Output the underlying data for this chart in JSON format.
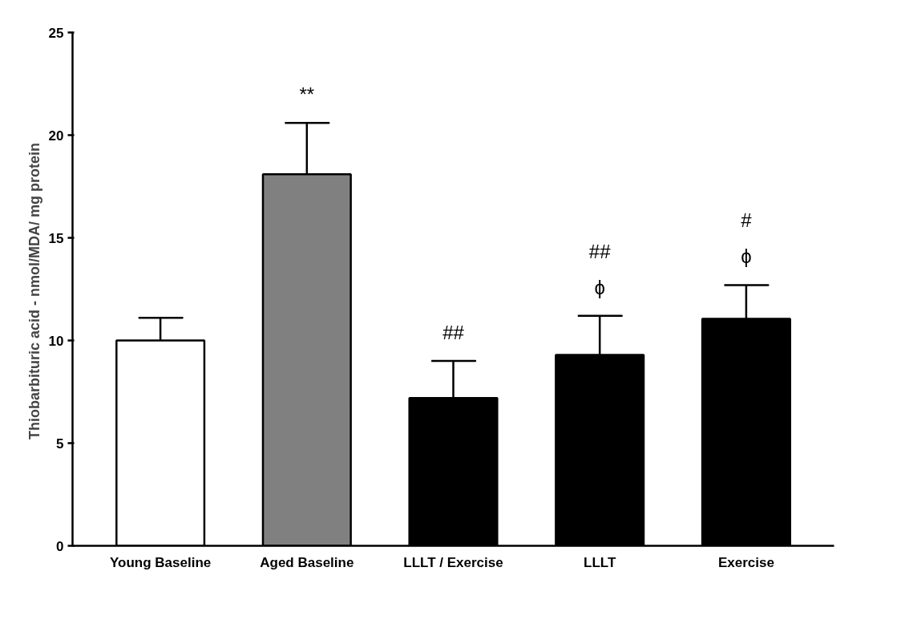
{
  "chart_data": {
    "type": "bar",
    "ylabel": "Thiobarbituric acid -  nmol/MDA/ mg protein",
    "categories": [
      "Young Baseline",
      "Aged Baseline",
      "LLLT / Exercise",
      "LLLT",
      "Exercise"
    ],
    "values": [
      10.0,
      18.1,
      7.2,
      9.3,
      11.05
    ],
    "colors": [
      "#ffffff",
      "#808080",
      "#000000",
      "#000000",
      "#000000"
    ],
    "errors": [
      [
        10.0,
        11.1
      ],
      [
        18.1,
        20.6
      ],
      [
        7.2,
        9.0
      ],
      [
        9.3,
        11.2
      ],
      [
        11.05,
        12.7
      ]
    ],
    "ylim": [
      0,
      25
    ],
    "yticks": [
      0,
      5,
      10,
      15,
      20,
      25
    ],
    "grid": false,
    "annotations": [
      {
        "text": "**",
        "x": "Aged Baseline",
        "y": 20.6
      },
      {
        "text": "##",
        "x": "LLLT / Exercise",
        "y": 9.0
      },
      {
        "text": "ϕ",
        "x": "LLLT",
        "y": 11.2
      },
      {
        "text": "##",
        "x": "LLLT",
        "y": 11.2
      },
      {
        "text": "ϕ",
        "x": "Exercise",
        "y": 12.7
      },
      {
        "text": "#",
        "x": "Exercise",
        "y": 12.7
      }
    ]
  }
}
